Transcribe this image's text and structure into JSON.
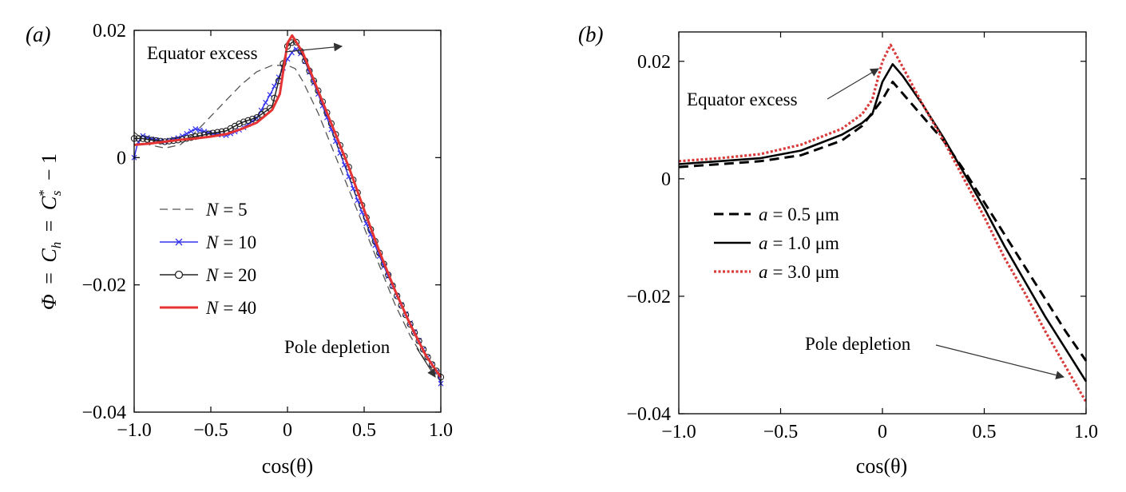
{
  "chart_data": [
    {
      "type": "line",
      "panel_label": "(a)",
      "xlabel": "cos(θ)",
      "ylabel": "Φ = Ch = C*s − 1",
      "ylabel_parts": {
        "lhs": "Φ",
        "eq": "=",
        "c1": "C",
        "c1_sub": "h",
        "eq2": "=",
        "c2": "C",
        "c2_sup": "*",
        "c2_sub": "s",
        "tail": "− 1"
      },
      "xlim": [
        -1.0,
        1.0
      ],
      "ylim": [
        -0.04,
        0.02
      ],
      "xticks": [
        "−1.0",
        "−0.5",
        "0",
        "0.5",
        "1.0"
      ],
      "yticks": [
        "0.02",
        "0",
        "−0.02",
        "−0.04"
      ],
      "legend": "left",
      "annotations": [
        "Equator excess",
        "Pole depletion"
      ],
      "series": [
        {
          "name": "N = 5",
          "legend_var": "N",
          "legend_val": "= 5",
          "color": "#555555",
          "style": "dashed",
          "x": [
            -1.0,
            -0.9,
            -0.8,
            -0.7,
            -0.6,
            -0.5,
            -0.4,
            -0.3,
            -0.2,
            -0.1,
            0.0,
            0.05,
            0.1,
            0.2,
            0.3,
            0.4,
            0.5,
            0.6,
            0.7,
            0.8,
            0.9,
            0.95,
            1.0
          ],
          "y": [
            0.004,
            0.002,
            0.0015,
            0.002,
            0.004,
            0.0065,
            0.009,
            0.0115,
            0.0135,
            0.0145,
            0.0145,
            0.014,
            0.012,
            0.007,
            0.001,
            -0.005,
            -0.011,
            -0.017,
            -0.023,
            -0.028,
            -0.032,
            -0.0335,
            -0.034
          ]
        },
        {
          "name": "N = 10",
          "legend_var": "N",
          "legend_val": "= 10",
          "color": "#3333ee",
          "style": "solid-x",
          "x": [
            -1.0,
            -0.98,
            -0.95,
            -0.9,
            -0.8,
            -0.7,
            -0.6,
            -0.5,
            -0.4,
            -0.3,
            -0.2,
            -0.1,
            0.0,
            0.05,
            0.1,
            0.2,
            0.3,
            0.4,
            0.5,
            0.6,
            0.7,
            0.8,
            0.9,
            0.95,
            0.98,
            1.0
          ],
          "y": [
            0.0,
            0.002,
            0.0035,
            0.003,
            0.0025,
            0.0032,
            0.0045,
            0.0038,
            0.0035,
            0.0045,
            0.0062,
            0.0105,
            0.0155,
            0.0172,
            0.016,
            0.01,
            0.0035,
            -0.003,
            -0.0095,
            -0.0155,
            -0.021,
            -0.026,
            -0.0308,
            -0.0328,
            -0.034,
            -0.0355
          ]
        },
        {
          "name": "N = 20",
          "legend_var": "N",
          "legend_val": "= 20",
          "color": "#222222",
          "style": "solid-o",
          "x": [
            -1.0,
            -0.95,
            -0.9,
            -0.8,
            -0.7,
            -0.6,
            -0.5,
            -0.4,
            -0.3,
            -0.2,
            -0.1,
            0.0,
            0.05,
            0.1,
            0.2,
            0.3,
            0.4,
            0.5,
            0.6,
            0.7,
            0.8,
            0.9,
            0.95,
            1.0
          ],
          "y": [
            0.003,
            0.003,
            0.0028,
            0.0025,
            0.0028,
            0.0033,
            0.0038,
            0.0042,
            0.0055,
            0.0063,
            0.008,
            0.0175,
            0.0185,
            0.016,
            0.0105,
            0.0045,
            -0.0015,
            -0.0085,
            -0.015,
            -0.021,
            -0.0262,
            -0.0308,
            -0.0328,
            -0.0345
          ]
        },
        {
          "name": "N = 40",
          "legend_var": "N",
          "legend_val": "= 40",
          "color": "#e53333",
          "style": "solid",
          "x": [
            -1.0,
            -0.9,
            -0.8,
            -0.7,
            -0.6,
            -0.5,
            -0.4,
            -0.3,
            -0.2,
            -0.1,
            -0.05,
            0.0,
            0.03,
            0.1,
            0.2,
            0.3,
            0.4,
            0.5,
            0.6,
            0.7,
            0.8,
            0.9,
            0.95,
            1.0
          ],
          "y": [
            0.002,
            0.0022,
            0.0025,
            0.0028,
            0.003,
            0.0033,
            0.0037,
            0.0045,
            0.0055,
            0.0075,
            0.01,
            0.018,
            0.0192,
            0.0165,
            0.0105,
            0.0045,
            -0.0015,
            -0.0082,
            -0.0148,
            -0.0208,
            -0.0262,
            -0.031,
            -0.0328,
            -0.0345
          ]
        }
      ]
    },
    {
      "type": "line",
      "panel_label": "(b)",
      "xlabel": "cos(θ)",
      "ylabel": "",
      "xlim": [
        -1.0,
        1.0
      ],
      "ylim": [
        -0.04,
        0.025
      ],
      "xticks": [
        "−1.0",
        "−0.5",
        "0",
        "0.5",
        "1.0"
      ],
      "yticks": [
        "0.02",
        "0",
        "−0.02",
        "−0.04"
      ],
      "legend": "left",
      "annotations": [
        "Equator excess",
        "Pole depletion"
      ],
      "series": [
        {
          "name": "a = 0.5 μm",
          "legend_var": "a",
          "legend_val": "= 0.5  μm",
          "color": "#000000",
          "style": "dashed-thick",
          "x": [
            -1.0,
            -0.8,
            -0.6,
            -0.4,
            -0.2,
            -0.1,
            0.0,
            0.05,
            0.1,
            0.2,
            0.3,
            0.4,
            0.5,
            0.6,
            0.7,
            0.8,
            0.9,
            1.0
          ],
          "y": [
            0.002,
            0.0025,
            0.003,
            0.004,
            0.0065,
            0.009,
            0.0135,
            0.0165,
            0.0145,
            0.0105,
            0.0065,
            0.0015,
            -0.004,
            -0.0095,
            -0.015,
            -0.0205,
            -0.026,
            -0.031
          ]
        },
        {
          "name": "a = 1.0 μm",
          "legend_var": "a",
          "legend_val": "= 1.0  μm",
          "color": "#000000",
          "style": "solid",
          "x": [
            -1.0,
            -0.8,
            -0.6,
            -0.4,
            -0.2,
            -0.1,
            -0.05,
            0.0,
            0.05,
            0.1,
            0.2,
            0.3,
            0.4,
            0.5,
            0.6,
            0.7,
            0.8,
            0.9,
            1.0
          ],
          "y": [
            0.0025,
            0.003,
            0.0035,
            0.0048,
            0.0075,
            0.0095,
            0.011,
            0.0165,
            0.0195,
            0.0175,
            0.0125,
            0.007,
            0.001,
            -0.005,
            -0.0115,
            -0.0175,
            -0.0235,
            -0.029,
            -0.0345
          ]
        },
        {
          "name": "a = 3.0 μm",
          "legend_var": "a",
          "legend_val": "= 3.0  μm",
          "color": "#d93a3a",
          "style": "dotted",
          "x": [
            -1.0,
            -0.8,
            -0.6,
            -0.4,
            -0.2,
            -0.1,
            -0.05,
            0.0,
            0.04,
            0.1,
            0.2,
            0.3,
            0.4,
            0.5,
            0.6,
            0.7,
            0.8,
            0.9,
            1.0
          ],
          "y": [
            0.003,
            0.0035,
            0.0042,
            0.0058,
            0.0085,
            0.011,
            0.0135,
            0.02,
            0.0228,
            0.019,
            0.0125,
            0.0065,
            0.0,
            -0.0065,
            -0.0135,
            -0.0195,
            -0.026,
            -0.032,
            -0.038
          ]
        }
      ]
    }
  ]
}
